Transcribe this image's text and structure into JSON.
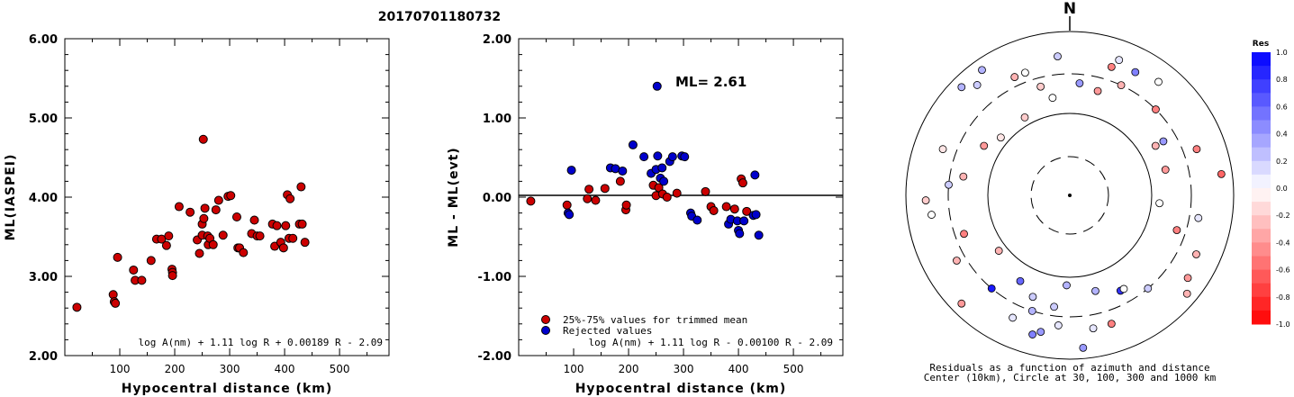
{
  "title": "20170701180732",
  "chart_data": [
    {
      "type": "scatter",
      "xlabel": "Hypocentral distance (km)",
      "ylabel": "ML(IASPEI)",
      "xlim": [
        0,
        590
      ],
      "ylim": [
        2.0,
        6.0
      ],
      "xticks": [
        "100",
        "200",
        "300",
        "400",
        "500"
      ],
      "yticks": [
        "2.00",
        "3.00",
        "4.00",
        "5.00",
        "6.00"
      ],
      "formula": "log A(nm) + 1.11 log R + 0.00189 R - 2.09",
      "point_color": "#cc0000",
      "points": [
        [
          22,
          2.61
        ],
        [
          88,
          2.77
        ],
        [
          90,
          2.68
        ],
        [
          92,
          2.66
        ],
        [
          96,
          3.24
        ],
        [
          125,
          3.08
        ],
        [
          128,
          2.95
        ],
        [
          140,
          2.95
        ],
        [
          157,
          3.2
        ],
        [
          167,
          3.47
        ],
        [
          176,
          3.47
        ],
        [
          185,
          3.39
        ],
        [
          189,
          3.51
        ],
        [
          195,
          3.09
        ],
        [
          196,
          3.05
        ],
        [
          196,
          3.01
        ],
        [
          208,
          3.88
        ],
        [
          228,
          3.81
        ],
        [
          241,
          3.46
        ],
        [
          245,
          3.29
        ],
        [
          250,
          3.52
        ],
        [
          250,
          3.66
        ],
        [
          252,
          4.73
        ],
        [
          253,
          3.73
        ],
        [
          255,
          3.86
        ],
        [
          260,
          3.51
        ],
        [
          261,
          3.4
        ],
        [
          264,
          3.48
        ],
        [
          270,
          3.4
        ],
        [
          275,
          3.84
        ],
        [
          280,
          3.96
        ],
        [
          288,
          3.52
        ],
        [
          297,
          4.01
        ],
        [
          302,
          4.02
        ],
        [
          313,
          3.75
        ],
        [
          315,
          3.36
        ],
        [
          318,
          3.36
        ],
        [
          325,
          3.3
        ],
        [
          340,
          3.54
        ],
        [
          345,
          3.71
        ],
        [
          350,
          3.51
        ],
        [
          355,
          3.51
        ],
        [
          378,
          3.66
        ],
        [
          382,
          3.38
        ],
        [
          386,
          3.64
        ],
        [
          393,
          3.43
        ],
        [
          398,
          3.36
        ],
        [
          402,
          3.64
        ],
        [
          405,
          4.03
        ],
        [
          408,
          3.48
        ],
        [
          410,
          3.98
        ],
        [
          415,
          3.48
        ],
        [
          427,
          3.66
        ],
        [
          430,
          4.13
        ],
        [
          432,
          3.66
        ],
        [
          437,
          3.43
        ]
      ]
    },
    {
      "type": "scatter",
      "xlabel": "Hypocentral distance (km)",
      "ylabel": "ML - ML(evt)",
      "xlim": [
        0,
        590
      ],
      "ylim": [
        -2.0,
        2.0
      ],
      "xticks": [
        "100",
        "200",
        "300",
        "400",
        "500"
      ],
      "yticks": [
        "-2.00",
        "-1.00",
        "0.00",
        "1.00",
        "2.00"
      ],
      "annotation": "ML= 2.61",
      "formula": "log A(nm) + 1.11 log R - 0.00100 R - 2.09",
      "legend": [
        {
          "label": "25%-75% values for trimmed mean",
          "color": "#cc0000"
        },
        {
          "label": "Rejected values",
          "color": "#0000cc"
        }
      ],
      "series": [
        {
          "color": "#cc0000",
          "points": [
            [
              22,
              -0.05
            ],
            [
              88,
              -0.1
            ],
            [
              125,
              -0.02
            ],
            [
              128,
              0.1
            ],
            [
              140,
              -0.04
            ],
            [
              157,
              0.11
            ],
            [
              185,
              0.2
            ],
            [
              195,
              -0.16
            ],
            [
              196,
              -0.1
            ],
            [
              245,
              0.15
            ],
            [
              250,
              0.02
            ],
            [
              255,
              0.12
            ],
            [
              262,
              0.04
            ],
            [
              270,
              0.0
            ],
            [
              288,
              0.05
            ],
            [
              340,
              0.07
            ],
            [
              350,
              -0.12
            ],
            [
              355,
              -0.17
            ],
            [
              378,
              -0.12
            ],
            [
              393,
              -0.15
            ],
            [
              405,
              0.23
            ],
            [
              408,
              0.18
            ],
            [
              415,
              -0.18
            ]
          ]
        },
        {
          "color": "#0000cc",
          "points": [
            [
              90,
              -0.2
            ],
            [
              92,
              -0.22
            ],
            [
              96,
              0.34
            ],
            [
              167,
              0.37
            ],
            [
              176,
              0.36
            ],
            [
              189,
              0.33
            ],
            [
              208,
              0.66
            ],
            [
              228,
              0.51
            ],
            [
              241,
              0.3
            ],
            [
              250,
              0.35
            ],
            [
              252,
              1.4
            ],
            [
              253,
              0.52
            ],
            [
              258,
              0.24
            ],
            [
              261,
              0.37
            ],
            [
              264,
              0.2
            ],
            [
              275,
              0.45
            ],
            [
              280,
              0.51
            ],
            [
              297,
              0.52
            ],
            [
              302,
              0.51
            ],
            [
              313,
              -0.2
            ],
            [
              315,
              -0.24
            ],
            [
              325,
              -0.29
            ],
            [
              382,
              -0.34
            ],
            [
              386,
              -0.28
            ],
            [
              398,
              -0.3
            ],
            [
              400,
              -0.42
            ],
            [
              402,
              -0.46
            ],
            [
              410,
              -0.3
            ],
            [
              427,
              -0.23
            ],
            [
              430,
              0.28
            ],
            [
              432,
              -0.22
            ],
            [
              437,
              -0.48
            ]
          ]
        }
      ]
    },
    {
      "type": "polar",
      "north_label": "N",
      "caption_line1": "Residuals as a function of azimuth and distance",
      "caption_line2": "Center (10km), Circle at 30, 100, 300 and 1000 km",
      "colorbar_title": "Res",
      "colorbar_ticks": [
        "1.0",
        "0.8",
        "0.6",
        "0.4",
        "0.2",
        "0.0",
        "-0.2",
        "-0.4",
        "-0.6",
        "-0.8",
        "-1.0"
      ],
      "stations": [
        [
          20,
          0.1
        ],
        [
          25,
          -0.3
        ],
        [
          15,
          -0.4
        ],
        [
          18,
          -0.5
        ],
        [
          -10,
          0.0
        ],
        [
          -35,
          0.3
        ],
        [
          -50,
          -0.1
        ],
        [
          -25,
          -0.3
        ],
        [
          5,
          0.4
        ],
        [
          28,
          0.5
        ],
        [
          38,
          0.0
        ],
        [
          45,
          -0.5
        ],
        [
          60,
          0.4
        ],
        [
          70,
          -0.5
        ],
        [
          75,
          -0.4
        ],
        [
          82,
          -0.6
        ],
        [
          95,
          0.0
        ],
        [
          100,
          0.1
        ],
        [
          108,
          -0.5
        ],
        [
          115,
          -0.3
        ],
        [
          125,
          -0.4
        ],
        [
          140,
          0.2
        ],
        [
          152,
          0.8
        ],
        [
          162,
          -0.5
        ],
        [
          165,
          0.3
        ],
        [
          175,
          0.4
        ],
        [
          182,
          0.3
        ],
        [
          185,
          0.1
        ],
        [
          188,
          0.2
        ],
        [
          192,
          0.4
        ],
        [
          195,
          0.5
        ],
        [
          198,
          0.3
        ],
        [
          200,
          0.2
        ],
        [
          205,
          0.1
        ],
        [
          210,
          0.6
        ],
        [
          225,
          -0.4
        ],
        [
          232,
          -0.3
        ],
        [
          240,
          -0.3
        ],
        [
          250,
          -0.5
        ],
        [
          262,
          0.0
        ],
        [
          268,
          -0.2
        ],
        [
          275,
          0.2
        ],
        [
          280,
          -0.3
        ],
        [
          290,
          -0.1
        ],
        [
          300,
          -0.4
        ],
        [
          315,
          0.3
        ],
        [
          330,
          -0.2
        ],
        [
          340,
          0.0
        ],
        [
          345,
          -0.2
        ],
        [
          355,
          0.2
        ],
        [
          320,
          0.2
        ],
        [
          -140,
          0.9
        ],
        [
          150,
          0.0
        ],
        [
          170,
          0.1
        ],
        [
          60,
          -0.3
        ],
        [
          130,
          -0.3
        ]
      ]
    }
  ]
}
